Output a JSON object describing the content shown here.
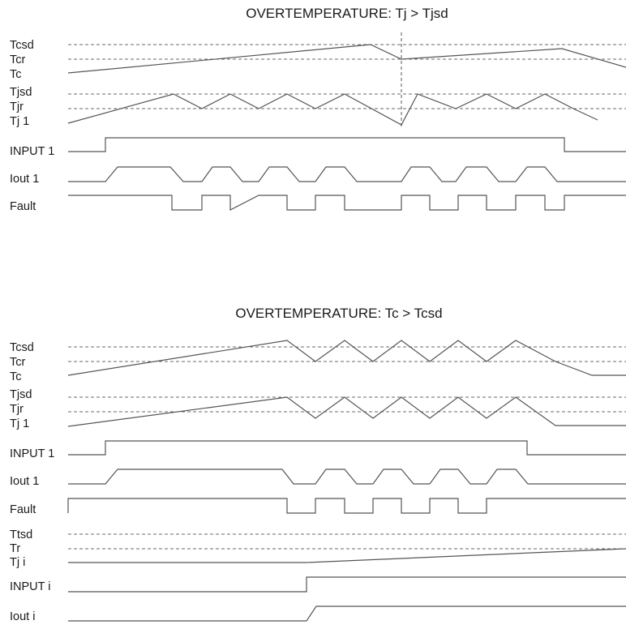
{
  "panels": [
    {
      "title": "OVERTEMPERATURE: Tj > Tjsd",
      "labels": [
        "Tcsd",
        "Tcr",
        "Tc",
        "Tjsd",
        "Tjr",
        "Tj 1",
        "INPUT 1",
        "Iout 1",
        "Fault"
      ]
    },
    {
      "title": "OVERTEMPERATURE: Tc > Tcsd",
      "labels": [
        "Tcsd",
        "Tcr",
        "Tc",
        "Tjsd",
        "Tjr",
        "Tj 1",
        "INPUT 1",
        "Iout 1",
        "Fault",
        "Ttsd",
        "Tr",
        "Tj i",
        "INPUT i",
        "Iout i"
      ]
    }
  ]
}
